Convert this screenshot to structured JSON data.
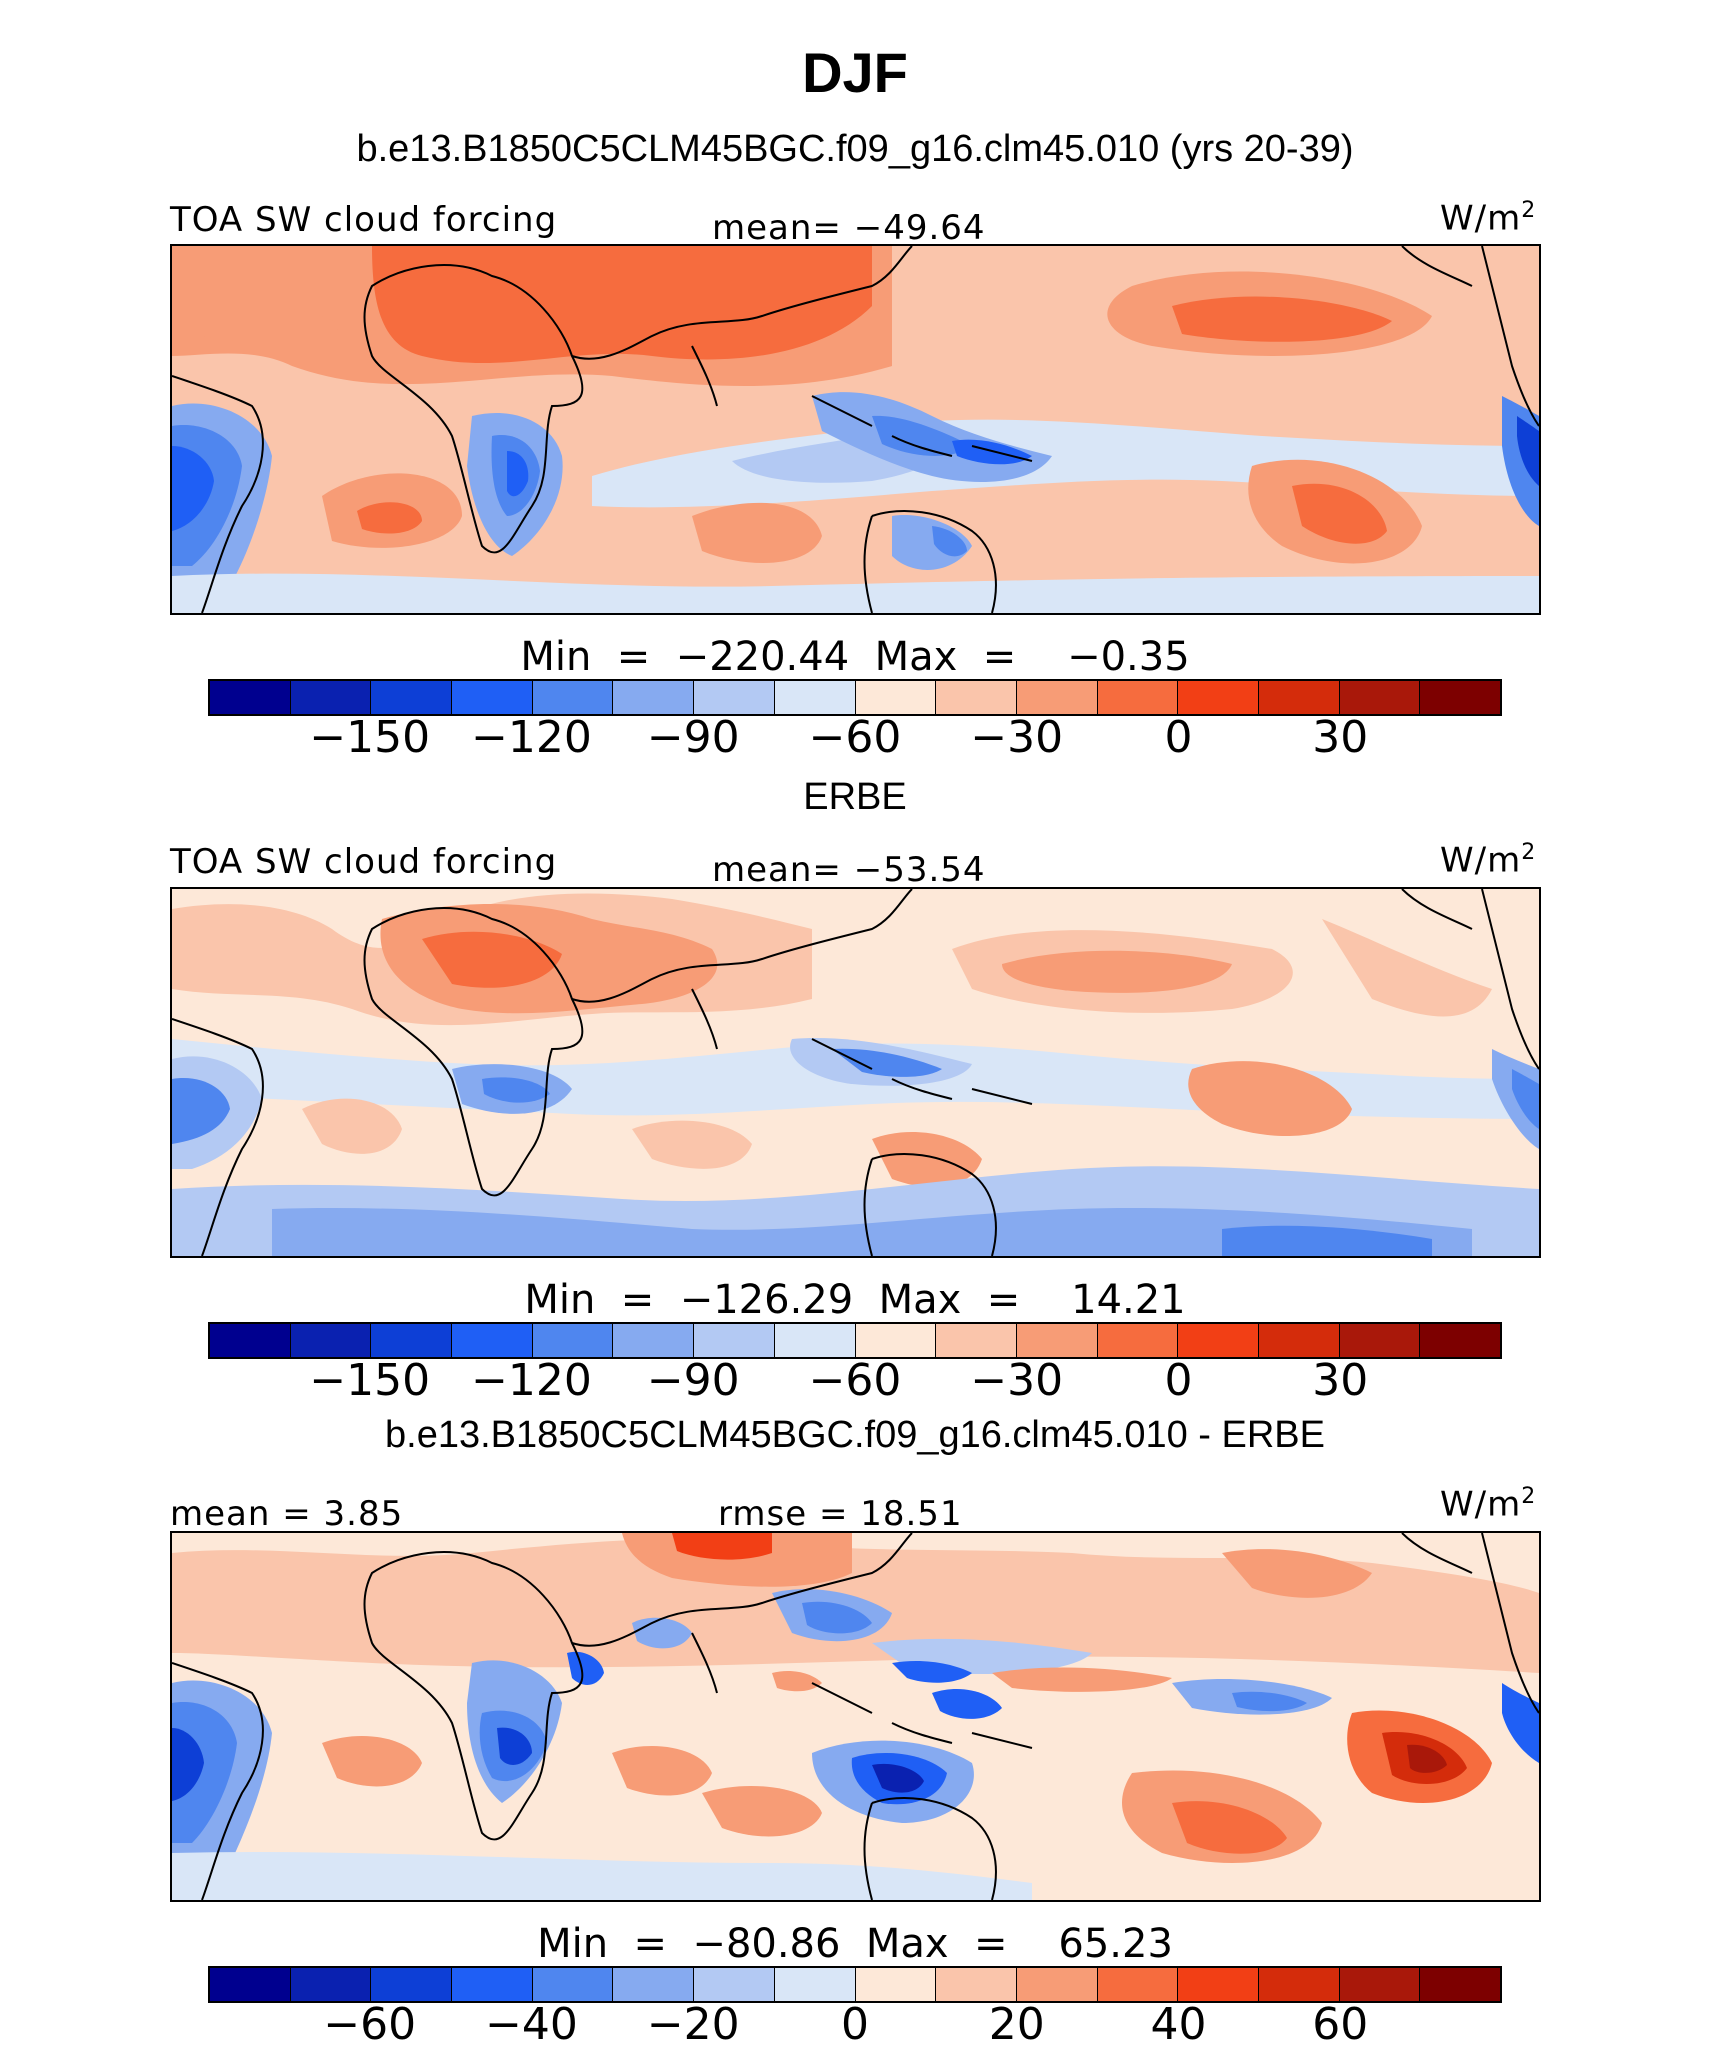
{
  "title": "DJF",
  "colors": [
    "#00008f",
    "#0a21b0",
    "#0d3fd6",
    "#1f5ff5",
    "#4f86ef",
    "#86aaf0",
    "#b3c9f3",
    "#d9e6f7",
    "#fde8d8",
    "#fac5ab",
    "#f79c76",
    "#f66c3e",
    "#f23f15",
    "#d42c0b",
    "#a9180a",
    "#7d0000"
  ],
  "panels": [
    {
      "header": "b.e13.B1850C5CLM45BGC.f09_g16.clm45.010 (yrs 20-39)",
      "left_label": "TOA SW cloud forcing",
      "center_label": "mean= −49.64",
      "units_base": "W/m",
      "units_exp": "2",
      "min_max": "Min  =  −220.44  Max  =    −0.35",
      "ticks": [
        "−150",
        "−120",
        "−90",
        "−60",
        "−30",
        "0",
        "30"
      ]
    },
    {
      "header": "ERBE",
      "left_label": "TOA SW cloud forcing",
      "center_label": "mean= −53.54",
      "units_base": "W/m",
      "units_exp": "2",
      "min_max": "Min  =  −126.29  Max  =    14.21",
      "ticks": [
        "−150",
        "−120",
        "−90",
        "−60",
        "−30",
        "0",
        "30"
      ]
    },
    {
      "header": "b.e13.B1850C5CLM45BGC.f09_g16.clm45.010 - ERBE",
      "left_label": "mean =    3.85",
      "center_label": "rmse =   18.51",
      "units_base": "W/m",
      "units_exp": "2",
      "min_max": "Min  =  −80.86  Max  =    65.23",
      "ticks": [
        "−60",
        "−40",
        "−20",
        "0",
        "20",
        "40",
        "60"
      ]
    }
  ]
}
